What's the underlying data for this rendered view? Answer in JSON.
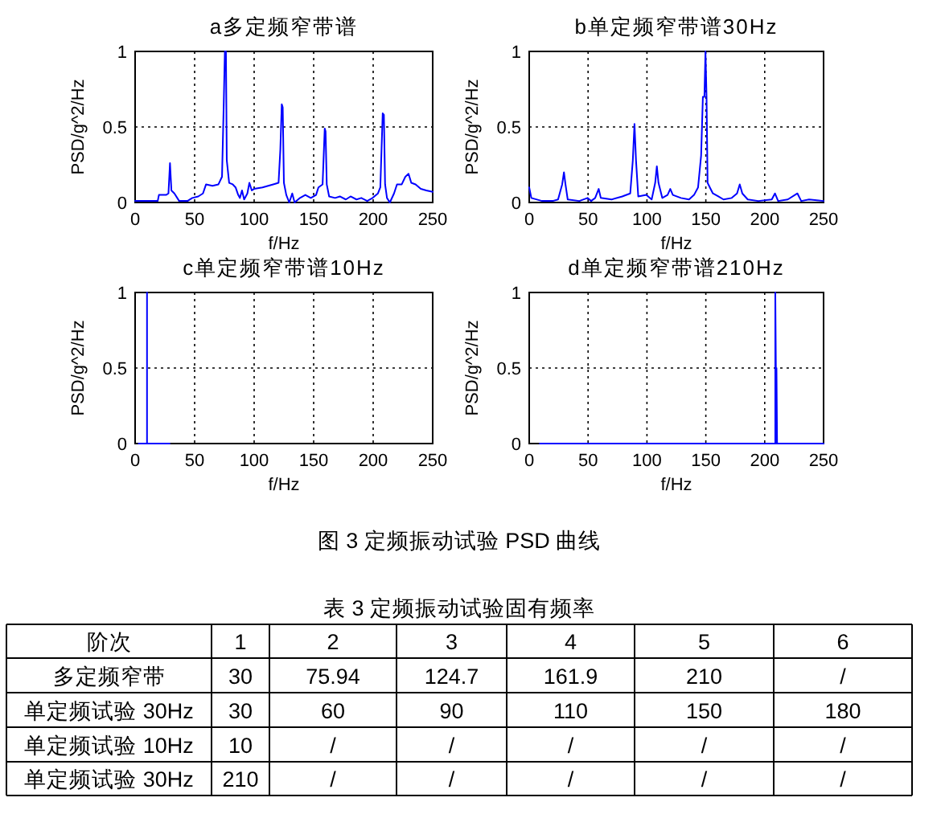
{
  "chart_data": [
    {
      "type": "line",
      "title": "a多定频窄带谱",
      "xlabel": "f/Hz",
      "ylabel": "PSD/g^2/Hz",
      "color": "#0000ff",
      "xlim": [
        0,
        250
      ],
      "ylim": [
        0,
        1
      ],
      "xticks": [
        0,
        50,
        100,
        150,
        200,
        250
      ],
      "yticks": [
        0,
        0.5,
        1
      ],
      "grid": true,
      "x": [
        0,
        10,
        19,
        20,
        26,
        28,
        29.3,
        30.5,
        33,
        37,
        44,
        48,
        53,
        57,
        59.6,
        65,
        70,
        73,
        74.5,
        75.4,
        76.3,
        77,
        79,
        82,
        84.4,
        86.6,
        88,
        89.8,
        91.6,
        94.3,
        96,
        98,
        100,
        107,
        116,
        120.5,
        122,
        123.2,
        124,
        125,
        127,
        129.5,
        132,
        134,
        138.5,
        143,
        147.6,
        152,
        154,
        157.5,
        159.3,
        160,
        161,
        163,
        168,
        172,
        177,
        181,
        186,
        190,
        195,
        199.5,
        204,
        206,
        208,
        209,
        210,
        211.6,
        214,
        217.5,
        220,
        224,
        227,
        229.7,
        232,
        235.6,
        240,
        244.6,
        250
      ],
      "values": [
        0.01,
        0.01,
        0.01,
        0.05,
        0.05,
        0.06,
        0.26,
        0.08,
        0.06,
        0.01,
        0.01,
        0.03,
        0.04,
        0.06,
        0.12,
        0.11,
        0.12,
        0.17,
        0.67,
        1,
        1,
        0.28,
        0.13,
        0.12,
        0.1,
        0.05,
        0.03,
        0.08,
        0.02,
        0.06,
        0.13,
        0.08,
        0.09,
        0.1,
        0.12,
        0.13,
        0.35,
        0.65,
        0.63,
        0.13,
        0.05,
        0,
        0.06,
        0,
        0.03,
        0.05,
        0.03,
        0.05,
        0.1,
        0.12,
        0.49,
        0.47,
        0.12,
        0.04,
        0.03,
        0.04,
        0.02,
        0.04,
        0.02,
        0.03,
        0.01,
        0.03,
        0.06,
        0.1,
        0.59,
        0.58,
        0.12,
        0.03,
        0,
        0.06,
        0.12,
        0.12,
        0.17,
        0.19,
        0.13,
        0.12,
        0.09,
        0.08,
        0.07
      ]
    },
    {
      "type": "line",
      "title": "b单定频窄带谱30Hz",
      "xlabel": "f/Hz",
      "ylabel": "PSD/g^2/Hz",
      "color": "#0000ff",
      "xlim": [
        0,
        250
      ],
      "ylim": [
        0,
        1
      ],
      "xticks": [
        0,
        50,
        100,
        150,
        200,
        250
      ],
      "yticks": [
        0,
        0.5,
        1
      ],
      "grid": true,
      "x": [
        0,
        1.8,
        10.9,
        20,
        24.5,
        28,
        29.5,
        30.8,
        32.7,
        42.6,
        49.5,
        52.6,
        56,
        59,
        60.8,
        70,
        79,
        85.8,
        88,
        89.4,
        90.7,
        92.6,
        99.4,
        104,
        107,
        108.4,
        109.8,
        113,
        117.5,
        119.8,
        122,
        128.9,
        135.7,
        140,
        143.4,
        146,
        147.5,
        148.8,
        149.7,
        150.6,
        151.5,
        153.4,
        156,
        160.6,
        165,
        172,
        176.5,
        178.8,
        181,
        185.6,
        194.6,
        206,
        208.7,
        211.4,
        219.6,
        227.8,
        231,
        237.7,
        250
      ],
      "values": [
        0.1,
        0.03,
        0.01,
        0.01,
        0.02,
        0.12,
        0.2,
        0.12,
        0.02,
        0.01,
        0.03,
        0.01,
        0.03,
        0.09,
        0.03,
        0.02,
        0.04,
        0.06,
        0.28,
        0.52,
        0.28,
        0.04,
        0.05,
        0.02,
        0.13,
        0.24,
        0.13,
        0.03,
        0.05,
        0.09,
        0.05,
        0.03,
        0.02,
        0.05,
        0.1,
        0.31,
        0.7,
        0.7,
        1,
        0.7,
        0.13,
        0.1,
        0.06,
        0.04,
        0.02,
        0.03,
        0.06,
        0.12,
        0.06,
        0.02,
        0.01,
        0.02,
        0.06,
        0.01,
        0.02,
        0.06,
        0.01,
        0.02,
        0.01
      ]
    },
    {
      "type": "line",
      "title": "c单定频窄带谱10Hz",
      "xlabel": "f/Hz",
      "ylabel": "PSD/g^2/Hz",
      "color": "#0000ff",
      "xlim": [
        0,
        250
      ],
      "ylim": [
        0,
        1
      ],
      "xticks": [
        0,
        50,
        100,
        150,
        200,
        250
      ],
      "yticks": [
        0,
        0.5,
        1
      ],
      "grid": true,
      "x": [
        3,
        10,
        10,
        10,
        29
      ],
      "values": [
        0,
        0,
        1,
        0,
        0
      ]
    },
    {
      "type": "line",
      "title": "d单定频窄带谱210Hz",
      "xlabel": "f/Hz",
      "ylabel": "PSD/g^2/Hz",
      "color": "#0000ff",
      "xlim": [
        0,
        250
      ],
      "ylim": [
        0,
        1
      ],
      "xticks": [
        0,
        50,
        100,
        150,
        200,
        250
      ],
      "yticks": [
        0,
        0.5,
        1
      ],
      "grid": true,
      "x": [
        9,
        209,
        209,
        210,
        210,
        210.5,
        250
      ],
      "values": [
        0,
        0,
        1,
        0,
        0.5,
        0,
        0
      ],
      "annotations": [
        "图 3  定频振动试验 PSD 曲线"
      ]
    },
    {
      "type": "heatmap",
      "title": "表 3  定频振动试验固有频率",
      "xlabel": "阶次",
      "categories": [
        "1",
        "2",
        "3",
        "4",
        "5",
        "6"
      ],
      "y_categories": [
        "多定频窄带",
        "单定频试验 30Hz",
        "单定频试验 10Hz",
        "单定频试验 30Hz"
      ],
      "cells": [
        [
          null,
          null,
          null,
          null,
          null,
          null
        ],
        [
          null,
          null,
          null,
          null,
          null,
          null
        ],
        [
          null,
          null,
          null,
          null,
          null,
          null
        ],
        [
          null,
          null,
          null,
          null,
          null,
          null
        ]
      ],
      "cell_labels": [
        [
          "30",
          "75.94",
          "124.7",
          "161.9",
          "210",
          "/"
        ],
        [
          "30",
          "60",
          "90",
          "110",
          "150",
          "180"
        ],
        [
          "10",
          "/",
          "/",
          "/",
          "/",
          "/"
        ],
        [
          "210",
          "/",
          "/",
          "/",
          "/",
          "/"
        ]
      ]
    }
  ]
}
